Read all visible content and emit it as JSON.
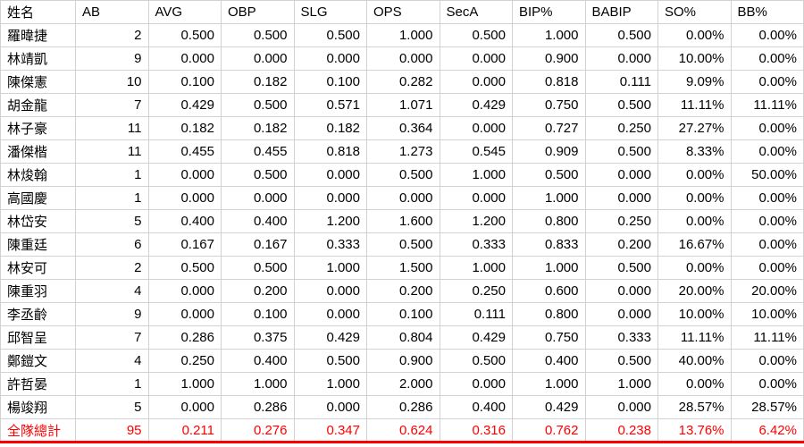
{
  "meta": {
    "accent_red": "#ff0000",
    "gridline_color": "#d2d2d2",
    "text_color": "#000000"
  },
  "table": {
    "columns": [
      "姓名",
      "AB",
      "AVG",
      "OBP",
      "SLG",
      "OPS",
      "SecA",
      "BIP%",
      "BABIP",
      "SO%",
      "BB%"
    ],
    "rows": [
      [
        "羅暐捷",
        "2",
        "0.500",
        "0.500",
        "0.500",
        "1.000",
        "0.500",
        "1.000",
        "0.500",
        "0.00%",
        "0.00%"
      ],
      [
        "林靖凱",
        "9",
        "0.000",
        "0.000",
        "0.000",
        "0.000",
        "0.000",
        "0.900",
        "0.000",
        "10.00%",
        "0.00%"
      ],
      [
        "陳傑憲",
        "10",
        "0.100",
        "0.182",
        "0.100",
        "0.282",
        "0.000",
        "0.818",
        "0.111",
        "9.09%",
        "0.00%"
      ],
      [
        "胡金龍",
        "7",
        "0.429",
        "0.500",
        "0.571",
        "1.071",
        "0.429",
        "0.750",
        "0.500",
        "11.11%",
        "11.11%"
      ],
      [
        "林子豪",
        "11",
        "0.182",
        "0.182",
        "0.182",
        "0.364",
        "0.000",
        "0.727",
        "0.250",
        "27.27%",
        "0.00%"
      ],
      [
        "潘傑楷",
        "11",
        "0.455",
        "0.455",
        "0.818",
        "1.273",
        "0.545",
        "0.909",
        "0.500",
        "8.33%",
        "0.00%"
      ],
      [
        "林焌翰",
        "1",
        "0.000",
        "0.500",
        "0.000",
        "0.500",
        "1.000",
        "0.500",
        "0.000",
        "0.00%",
        "50.00%"
      ],
      [
        "高國慶",
        "1",
        "0.000",
        "0.000",
        "0.000",
        "0.000",
        "0.000",
        "1.000",
        "0.000",
        "0.00%",
        "0.00%"
      ],
      [
        "林岱安",
        "5",
        "0.400",
        "0.400",
        "1.200",
        "1.600",
        "1.200",
        "0.800",
        "0.250",
        "0.00%",
        "0.00%"
      ],
      [
        "陳重廷",
        "6",
        "0.167",
        "0.167",
        "0.333",
        "0.500",
        "0.333",
        "0.833",
        "0.200",
        "16.67%",
        "0.00%"
      ],
      [
        "林安可",
        "2",
        "0.500",
        "0.500",
        "1.000",
        "1.500",
        "1.000",
        "1.000",
        "0.500",
        "0.00%",
        "0.00%"
      ],
      [
        "陳重羽",
        "4",
        "0.000",
        "0.200",
        "0.000",
        "0.200",
        "0.250",
        "0.600",
        "0.000",
        "20.00%",
        "20.00%"
      ],
      [
        "李丞齡",
        "9",
        "0.000",
        "0.100",
        "0.000",
        "0.100",
        "0.111",
        "0.800",
        "0.000",
        "10.00%",
        "10.00%"
      ],
      [
        "邱智呈",
        "7",
        "0.286",
        "0.375",
        "0.429",
        "0.804",
        "0.429",
        "0.750",
        "0.333",
        "11.11%",
        "11.11%"
      ],
      [
        "鄭鎧文",
        "4",
        "0.250",
        "0.400",
        "0.500",
        "0.900",
        "0.500",
        "0.400",
        "0.500",
        "40.00%",
        "0.00%"
      ],
      [
        "許哲晏",
        "1",
        "1.000",
        "1.000",
        "1.000",
        "2.000",
        "0.000",
        "1.000",
        "1.000",
        "0.00%",
        "0.00%"
      ],
      [
        "楊竣翔",
        "5",
        "0.000",
        "0.286",
        "0.000",
        "0.286",
        "0.400",
        "0.429",
        "0.000",
        "28.57%",
        "28.57%"
      ]
    ],
    "total": [
      "全隊總計",
      "95",
      "0.211",
      "0.276",
      "0.347",
      "0.624",
      "0.316",
      "0.762",
      "0.238",
      "13.76%",
      "6.42%"
    ]
  }
}
